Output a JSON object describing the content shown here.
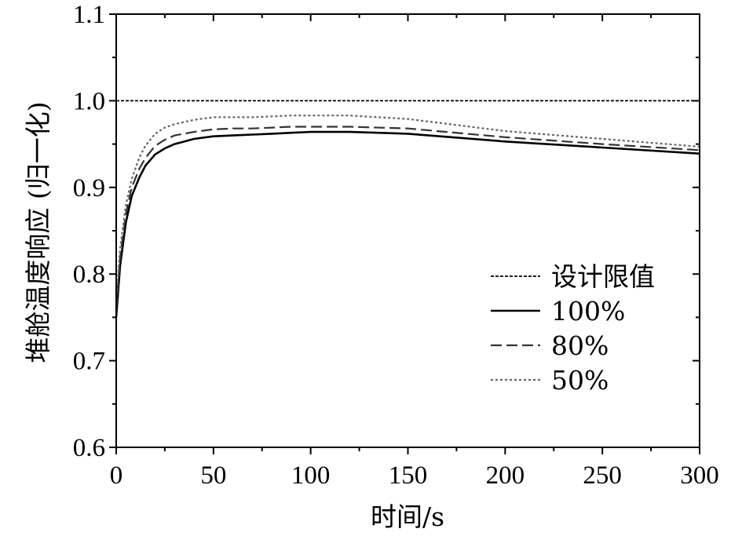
{
  "chart_data": {
    "type": "line",
    "xlabel": "时间/s",
    "ylabel": "堆舱温度响应 (归一化)",
    "xlim": [
      0,
      300
    ],
    "ylim": [
      0.6,
      1.1
    ],
    "x_ticks": [
      "0",
      "50",
      "100",
      "150",
      "200",
      "250",
      "300"
    ],
    "y_ticks": [
      "0.6",
      "0.7",
      "0.8",
      "0.9",
      "1.0",
      "1.1"
    ],
    "legend_position": "lower-right",
    "grid": false,
    "series": [
      {
        "name": "设计限值",
        "style": "dashed-fine",
        "color": "#000000",
        "x": [
          0,
          300
        ],
        "y": [
          1.0,
          1.0
        ]
      },
      {
        "name": "100%",
        "style": "solid",
        "color": "#000000",
        "x": [
          0,
          2,
          5,
          8,
          12,
          15,
          20,
          25,
          30,
          40,
          50,
          60,
          70,
          80,
          90,
          100,
          120,
          150,
          200,
          250,
          300
        ],
        "y": [
          0.75,
          0.81,
          0.86,
          0.89,
          0.912,
          0.925,
          0.938,
          0.945,
          0.95,
          0.956,
          0.959,
          0.96,
          0.961,
          0.962,
          0.963,
          0.964,
          0.964,
          0.962,
          0.953,
          0.946,
          0.939
        ]
      },
      {
        "name": "80%",
        "style": "dashed",
        "color": "#333333",
        "x": [
          0,
          2,
          5,
          8,
          12,
          15,
          20,
          25,
          30,
          40,
          50,
          60,
          70,
          80,
          90,
          100,
          120,
          150,
          200,
          250,
          300
        ],
        "y": [
          0.76,
          0.82,
          0.87,
          0.9,
          0.922,
          0.934,
          0.948,
          0.955,
          0.96,
          0.964,
          0.967,
          0.968,
          0.968,
          0.969,
          0.97,
          0.97,
          0.97,
          0.968,
          0.958,
          0.95,
          0.943
        ]
      },
      {
        "name": "50%",
        "style": "dotted",
        "color": "#666666",
        "x": [
          0,
          2,
          5,
          8,
          12,
          15,
          20,
          25,
          30,
          40,
          50,
          60,
          70,
          80,
          90,
          100,
          120,
          150,
          200,
          250,
          300
        ],
        "y": [
          0.77,
          0.83,
          0.88,
          0.91,
          0.935,
          0.948,
          0.962,
          0.969,
          0.973,
          0.978,
          0.981,
          0.981,
          0.981,
          0.982,
          0.983,
          0.983,
          0.983,
          0.979,
          0.965,
          0.956,
          0.947
        ]
      }
    ]
  }
}
